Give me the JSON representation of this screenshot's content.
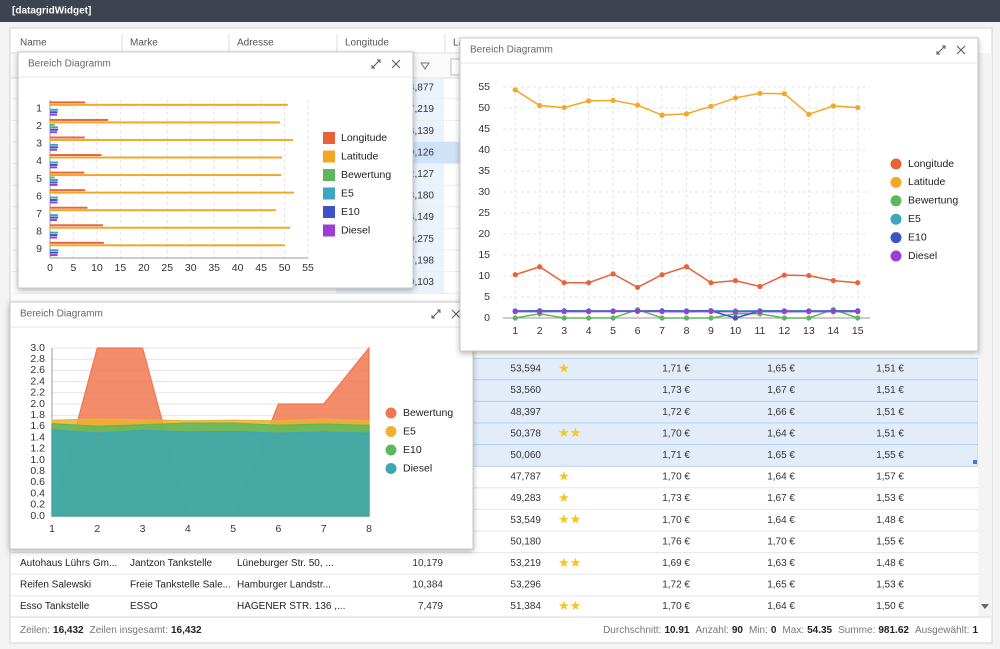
{
  "header": {
    "title": "[datagridWidget]"
  },
  "grid": {
    "columns": [
      "Name",
      "Marke",
      "Adresse",
      "Longitude",
      "La"
    ],
    "upper_rows": [
      {
        "longitude": "8,877"
      },
      {
        "longitude": "7,219"
      },
      {
        "longitude": "8,139"
      },
      {
        "longitude": "10,126",
        "selected": true
      },
      {
        "longitude": "2,127"
      },
      {
        "longitude": "8,180"
      },
      {
        "longitude": "8,149"
      },
      {
        "longitude": "10,275"
      },
      {
        "longitude": "7,198"
      },
      {
        "longitude": "10,103"
      }
    ],
    "rows": [
      {
        "cells": [
          null,
          null,
          null,
          null,
          "53,594",
          "★",
          "1,71 €",
          "1,65 €",
          "1,51 €"
        ],
        "selected": true
      },
      {
        "cells": [
          null,
          null,
          null,
          null,
          "53,560",
          null,
          "1,73 €",
          "1,67 €",
          "1,51 €"
        ],
        "selected": true
      },
      {
        "cells": [
          null,
          null,
          null,
          null,
          "48,397",
          null,
          "1,72 €",
          "1,66 €",
          "1,51 €"
        ],
        "selected": true
      },
      {
        "cells": [
          null,
          null,
          null,
          null,
          "50,378",
          "★★",
          "1,70 €",
          "1,64 €",
          "1,51 €"
        ],
        "selected": true
      },
      {
        "cells": [
          null,
          null,
          null,
          null,
          "50,060",
          null,
          "1,71 €",
          "1,65 €",
          "1,55 €"
        ],
        "selected": true
      },
      {
        "cells": [
          null,
          null,
          null,
          null,
          "47,787",
          "★",
          "1,70 €",
          "1,64 €",
          "1,57 €"
        ]
      },
      {
        "cells": [
          null,
          null,
          null,
          null,
          "49,283",
          "★",
          "1,73 €",
          "1,67 €",
          "1,53 €"
        ]
      },
      {
        "cells": [
          null,
          null,
          null,
          null,
          "53,549",
          "★★",
          "1,70 €",
          "1,64 €",
          "1,48 €"
        ]
      },
      {
        "cells": [
          null,
          null,
          null,
          null,
          "50,180",
          null,
          "1,76 €",
          "1,70 €",
          "1,55 €"
        ]
      },
      {
        "cells": [
          "Autohaus Lührs Gm...",
          "Jantzon Tankstelle",
          "Lüneburger Str. 50, ...",
          "10,179",
          "53,219",
          "★★",
          "1,69 €",
          "1,63 €",
          "1,48 €"
        ]
      },
      {
        "cells": [
          "Reifen Salewski",
          "Freie Tankstelle Sale...",
          "Hamburger Landstr...",
          "10,384",
          "53,296",
          null,
          "1,72 €",
          "1,65 €",
          "1,53 €"
        ]
      },
      {
        "cells": [
          "Esso Tankstelle",
          "ESSO",
          "HAGENER STR. 136 ,...",
          "7,479",
          "51,384",
          "★★",
          "1,70 €",
          "1,64 €",
          "1,50 €"
        ]
      }
    ],
    "footer_left": [
      {
        "label": "Zeilen:",
        "value": "16,432"
      },
      {
        "label": "Zeilen insgesamt:",
        "value": "16,432"
      }
    ],
    "footer_right": [
      {
        "label": "Durchschnitt:",
        "value": "10.91"
      },
      {
        "label": "Anzahl:",
        "value": "90"
      },
      {
        "label": "Min:",
        "value": "0"
      },
      {
        "label": "Max:",
        "value": "54.35"
      },
      {
        "label": "Summe:",
        "value": "981.62"
      },
      {
        "label": "Ausgewählt:",
        "value": "1"
      }
    ]
  },
  "chart_data": [
    {
      "type": "hbar",
      "title": "Bereich Diagramm",
      "categories": [
        1,
        2,
        3,
        4,
        5,
        6,
        7,
        8,
        9
      ],
      "xlim": [
        0,
        55
      ],
      "xticks": [
        0,
        5,
        10,
        15,
        20,
        25,
        30,
        35,
        40,
        45,
        50,
        55
      ],
      "grid": true,
      "series": [
        {
          "name": "Longitude",
          "color": "#e8623a",
          "values": [
            7.5,
            12.4,
            7.4,
            11,
            7.3,
            7.5,
            8,
            11.3,
            11.5
          ]
        },
        {
          "name": "Latitude",
          "color": "#f5a623",
          "values": [
            50.7,
            49,
            51.8,
            49.5,
            49.3,
            52,
            48.2,
            51.2,
            50.1
          ]
        },
        {
          "name": "Bewertung",
          "color": "#5cb85c",
          "values": [
            0,
            1,
            0,
            0,
            1,
            0,
            0,
            0,
            0
          ]
        },
        {
          "name": "E5",
          "color": "#3ea6c0",
          "values": [
            1.7,
            1.7,
            1.7,
            1.7,
            1.7,
            1.7,
            1.7,
            1.7,
            1.8
          ]
        },
        {
          "name": "E10",
          "color": "#3d52c4",
          "values": [
            1.6,
            1.7,
            1.7,
            1.6,
            1.6,
            1.6,
            1.7,
            1.6,
            1.7
          ]
        },
        {
          "name": "Diesel",
          "color": "#9b3fd4",
          "values": [
            1.5,
            1.5,
            1.5,
            1.5,
            1.6,
            1.6,
            1.5,
            1.5,
            1.6
          ]
        }
      ]
    },
    {
      "type": "area",
      "title": "Bereich Diagramm",
      "x": [
        1,
        2,
        3,
        4,
        5,
        6,
        7,
        8
      ],
      "xlim": [
        1,
        8
      ],
      "xticks": [
        1,
        2,
        3,
        4,
        5,
        6,
        7,
        8
      ],
      "ylim": [
        0,
        3
      ],
      "yticks": [
        {
          "value": 0,
          "label": "0.0"
        },
        0.2,
        0.4,
        0.6,
        0.8,
        {
          "value": 1,
          "label": "1.0"
        },
        1.2,
        1.4,
        1.6,
        1.8,
        {
          "value": 2,
          "label": "2.0"
        },
        2.2,
        2.4,
        2.6,
        2.8,
        {
          "value": 3,
          "label": "3.0"
        }
      ],
      "grid": true,
      "series": [
        {
          "name": "Bewertung",
          "color": "#f07850",
          "values": [
            0,
            3,
            3,
            0,
            0,
            2,
            2,
            3
          ]
        },
        {
          "name": "E5",
          "color": "#f0b030",
          "values": [
            1.71,
            1.73,
            1.72,
            1.7,
            1.71,
            1.7,
            1.73,
            1.7
          ]
        },
        {
          "name": "E10",
          "color": "#5cb85c",
          "values": [
            1.65,
            1.6,
            1.63,
            1.66,
            1.66,
            1.62,
            1.64,
            1.62
          ]
        },
        {
          "name": "Diesel",
          "color": "#3ea6b0",
          "values": [
            1.54,
            1.48,
            1.53,
            1.5,
            1.51,
            1.48,
            1.5,
            1.48
          ]
        }
      ]
    },
    {
      "type": "line",
      "title": "Bereich Diagramm",
      "x": [
        1,
        2,
        3,
        4,
        5,
        6,
        7,
        8,
        9,
        10,
        11,
        12,
        13,
        14,
        15
      ],
      "xlim": [
        0.5,
        15.5
      ],
      "xticks": [
        1,
        2,
        3,
        4,
        5,
        6,
        7,
        8,
        9,
        10,
        11,
        12,
        13,
        14,
        15
      ],
      "ylim": [
        0,
        55
      ],
      "yticks": [
        0,
        5,
        10,
        15,
        20,
        25,
        30,
        35,
        40,
        45,
        50,
        55
      ],
      "grid": true,
      "series": [
        {
          "name": "Longitude",
          "color": "#e8623a",
          "values": [
            10.3,
            12.2,
            8.4,
            8.4,
            10.5,
            7.3,
            10.3,
            12.2,
            8.4,
            8.9,
            7.5,
            10.2,
            10.1,
            8.9,
            8.4
          ]
        },
        {
          "name": "Latitude",
          "color": "#f5a623",
          "values": [
            54.3,
            50.6,
            50.1,
            51.7,
            51.8,
            50.7,
            48.3,
            48.6,
            50.4,
            52.4,
            53.5,
            53.4,
            48.5,
            50.5,
            50.1
          ]
        },
        {
          "name": "Bewertung",
          "color": "#5cb85c",
          "values": [
            0,
            1,
            0,
            0,
            0,
            2,
            0,
            0,
            0,
            1,
            1,
            0,
            0,
            2,
            0
          ]
        },
        {
          "name": "E5",
          "color": "#3ea6c0",
          "values": [
            1.71,
            1.73,
            1.72,
            1.7,
            1.71,
            1.7,
            1.73,
            1.7,
            1.76,
            1.69,
            1.72,
            1.7,
            1.71,
            1.7,
            1.72
          ]
        },
        {
          "name": "E10",
          "color": "#3d52c4",
          "values": [
            1.65,
            1.67,
            1.66,
            1.64,
            1.65,
            1.64,
            1.67,
            1.64,
            1.7,
            0,
            1.65,
            1.64,
            1.65,
            1.64,
            1.66
          ]
        },
        {
          "name": "Diesel",
          "color": "#9b3fd4",
          "values": [
            1.51,
            1.51,
            1.51,
            1.51,
            1.55,
            1.57,
            1.53,
            1.48,
            1.55,
            1.48,
            1.53,
            1.5,
            1.51,
            1.51,
            1.51
          ]
        }
      ]
    }
  ]
}
